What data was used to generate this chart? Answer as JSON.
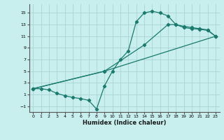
{
  "title": "",
  "xlabel": "Humidex (Indice chaleur)",
  "ylabel": "",
  "bg_color": "#c8eeee",
  "grid_color": "#aad4d4",
  "line_color": "#1a7a6e",
  "xlim": [
    -0.5,
    23.5
  ],
  "ylim": [
    -2,
    16.5
  ],
  "xticks": [
    0,
    1,
    2,
    3,
    4,
    5,
    6,
    7,
    8,
    9,
    10,
    11,
    12,
    13,
    14,
    15,
    16,
    17,
    18,
    19,
    20,
    21,
    22,
    23
  ],
  "yticks": [
    -1,
    1,
    3,
    5,
    7,
    9,
    11,
    13,
    15
  ],
  "line1_x": [
    0,
    1,
    2,
    3,
    4,
    5,
    6,
    7,
    8,
    9,
    10,
    11,
    12,
    13,
    14,
    15,
    16,
    17,
    18,
    19,
    20,
    21,
    22,
    23
  ],
  "line1_y": [
    2.0,
    2.0,
    1.8,
    1.2,
    0.8,
    0.5,
    0.3,
    0.0,
    -1.5,
    2.5,
    5.0,
    7.0,
    8.5,
    13.5,
    15.0,
    15.3,
    15.0,
    14.5,
    13.0,
    12.5,
    12.3,
    12.2,
    12.0,
    11.0
  ],
  "line2_x": [
    0,
    9,
    23
  ],
  "line2_y": [
    2.0,
    5.0,
    11.0
  ],
  "line3_x": [
    0,
    9,
    14,
    17,
    18,
    19,
    20,
    21,
    22,
    23
  ],
  "line3_y": [
    2.0,
    5.0,
    9.5,
    13.0,
    13.0,
    12.7,
    12.5,
    12.3,
    12.1,
    11.0
  ]
}
